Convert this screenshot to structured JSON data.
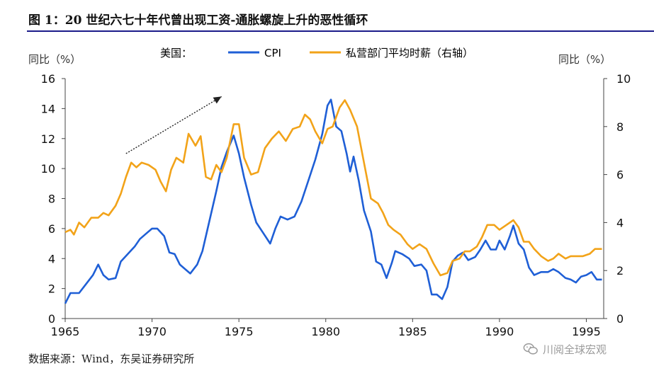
{
  "figure": {
    "title": "图 1：20 世纪六七十年代曾出现工资-通胀螺旋上升的恶性循环",
    "source": "数据来源：Wind，东吴证券研究所",
    "watermark": "川阅全球宏观"
  },
  "chart_data": {
    "type": "line",
    "legend_prefix": "美国：",
    "left_axis_label": "同比（%）",
    "right_axis_label": "同比（%）",
    "x_range": [
      1965,
      1996
    ],
    "x_ticks": [
      1965,
      1970,
      1975,
      1980,
      1985,
      1990,
      1995
    ],
    "y_left": {
      "range": [
        0,
        16
      ],
      "ticks": [
        0,
        2,
        4,
        6,
        8,
        10,
        12,
        14,
        16
      ]
    },
    "y_right": {
      "range": [
        0,
        10
      ],
      "ticks": [
        0,
        2,
        4,
        6,
        8,
        10
      ]
    },
    "grid": false,
    "legend_position": "top",
    "series": [
      {
        "name": "CPI",
        "axis": "left",
        "color": "#1f5fd6",
        "points": [
          [
            1965.0,
            1.0
          ],
          [
            1965.3,
            1.7
          ],
          [
            1965.8,
            1.7
          ],
          [
            1966.2,
            2.3
          ],
          [
            1966.6,
            2.9
          ],
          [
            1966.9,
            3.6
          ],
          [
            1967.2,
            2.9
          ],
          [
            1967.5,
            2.6
          ],
          [
            1967.9,
            2.7
          ],
          [
            1968.2,
            3.8
          ],
          [
            1968.6,
            4.3
          ],
          [
            1969.0,
            4.8
          ],
          [
            1969.3,
            5.3
          ],
          [
            1969.7,
            5.7
          ],
          [
            1970.0,
            6.0
          ],
          [
            1970.3,
            6.0
          ],
          [
            1970.7,
            5.5
          ],
          [
            1971.0,
            4.4
          ],
          [
            1971.3,
            4.3
          ],
          [
            1971.6,
            3.6
          ],
          [
            1971.9,
            3.3
          ],
          [
            1972.2,
            3.0
          ],
          [
            1972.6,
            3.6
          ],
          [
            1972.9,
            4.5
          ],
          [
            1973.3,
            6.5
          ],
          [
            1973.7,
            8.5
          ],
          [
            1974.0,
            10.1
          ],
          [
            1974.3,
            11.1
          ],
          [
            1974.7,
            12.2
          ],
          [
            1975.0,
            11.0
          ],
          [
            1975.3,
            9.4
          ],
          [
            1975.7,
            7.6
          ],
          [
            1976.0,
            6.4
          ],
          [
            1976.4,
            5.7
          ],
          [
            1976.8,
            5.0
          ],
          [
            1977.1,
            6.0
          ],
          [
            1977.4,
            6.8
          ],
          [
            1977.8,
            6.6
          ],
          [
            1978.2,
            6.8
          ],
          [
            1978.6,
            7.8
          ],
          [
            1979.0,
            9.2
          ],
          [
            1979.4,
            10.6
          ],
          [
            1979.8,
            12.3
          ],
          [
            1980.1,
            14.2
          ],
          [
            1980.3,
            14.6
          ],
          [
            1980.6,
            12.8
          ],
          [
            1980.9,
            12.5
          ],
          [
            1981.2,
            11.0
          ],
          [
            1981.4,
            9.8
          ],
          [
            1981.6,
            10.8
          ],
          [
            1981.9,
            9.2
          ],
          [
            1982.2,
            7.2
          ],
          [
            1982.6,
            5.8
          ],
          [
            1982.9,
            3.8
          ],
          [
            1983.2,
            3.6
          ],
          [
            1983.5,
            2.7
          ],
          [
            1983.8,
            3.7
          ],
          [
            1984.0,
            4.5
          ],
          [
            1984.4,
            4.3
          ],
          [
            1984.8,
            4.0
          ],
          [
            1985.1,
            3.5
          ],
          [
            1985.5,
            3.6
          ],
          [
            1985.8,
            3.2
          ],
          [
            1986.1,
            1.6
          ],
          [
            1986.4,
            1.6
          ],
          [
            1986.7,
            1.3
          ],
          [
            1987.0,
            2.1
          ],
          [
            1987.3,
            3.8
          ],
          [
            1987.6,
            4.2
          ],
          [
            1987.9,
            4.4
          ],
          [
            1988.2,
            3.9
          ],
          [
            1988.6,
            4.1
          ],
          [
            1988.9,
            4.6
          ],
          [
            1989.2,
            5.2
          ],
          [
            1989.5,
            4.6
          ],
          [
            1989.8,
            4.6
          ],
          [
            1990.0,
            5.2
          ],
          [
            1990.3,
            4.6
          ],
          [
            1990.6,
            5.5
          ],
          [
            1990.8,
            6.2
          ],
          [
            1991.1,
            5.0
          ],
          [
            1991.4,
            4.6
          ],
          [
            1991.7,
            3.4
          ],
          [
            1992.0,
            2.9
          ],
          [
            1992.4,
            3.1
          ],
          [
            1992.8,
            3.1
          ],
          [
            1993.1,
            3.3
          ],
          [
            1993.4,
            3.1
          ],
          [
            1993.8,
            2.7
          ],
          [
            1994.1,
            2.6
          ],
          [
            1994.4,
            2.4
          ],
          [
            1994.7,
            2.8
          ],
          [
            1995.0,
            2.9
          ],
          [
            1995.3,
            3.1
          ],
          [
            1995.6,
            2.6
          ],
          [
            1995.9,
            2.6
          ]
        ]
      },
      {
        "name": "私营部门平均时薪（右轴）",
        "axis": "right",
        "color": "#f2a319",
        "points": [
          [
            1965.0,
            3.6
          ],
          [
            1965.3,
            3.7
          ],
          [
            1965.5,
            3.5
          ],
          [
            1965.8,
            4.0
          ],
          [
            1966.1,
            3.8
          ],
          [
            1966.5,
            4.2
          ],
          [
            1966.9,
            4.2
          ],
          [
            1967.2,
            4.4
          ],
          [
            1967.5,
            4.3
          ],
          [
            1967.9,
            4.7
          ],
          [
            1968.2,
            5.2
          ],
          [
            1968.5,
            5.9
          ],
          [
            1968.8,
            6.5
          ],
          [
            1969.1,
            6.3
          ],
          [
            1969.4,
            6.5
          ],
          [
            1969.8,
            6.4
          ],
          [
            1970.2,
            6.2
          ],
          [
            1970.5,
            5.7
          ],
          [
            1970.8,
            5.3
          ],
          [
            1971.1,
            6.2
          ],
          [
            1971.4,
            6.7
          ],
          [
            1971.8,
            6.5
          ],
          [
            1972.1,
            7.7
          ],
          [
            1972.5,
            7.2
          ],
          [
            1972.8,
            7.6
          ],
          [
            1973.1,
            5.9
          ],
          [
            1973.4,
            5.8
          ],
          [
            1973.7,
            6.4
          ],
          [
            1974.0,
            6.1
          ],
          [
            1974.3,
            6.7
          ],
          [
            1974.7,
            8.1
          ],
          [
            1975.0,
            8.1
          ],
          [
            1975.3,
            6.7
          ],
          [
            1975.7,
            6.0
          ],
          [
            1976.1,
            6.1
          ],
          [
            1976.5,
            7.1
          ],
          [
            1976.9,
            7.5
          ],
          [
            1977.3,
            7.8
          ],
          [
            1977.7,
            7.4
          ],
          [
            1978.1,
            7.9
          ],
          [
            1978.5,
            8.0
          ],
          [
            1978.8,
            8.5
          ],
          [
            1979.1,
            8.3
          ],
          [
            1979.4,
            7.8
          ],
          [
            1979.8,
            7.3
          ],
          [
            1980.1,
            7.9
          ],
          [
            1980.4,
            8.0
          ],
          [
            1980.8,
            8.8
          ],
          [
            1981.1,
            9.1
          ],
          [
            1981.4,
            8.7
          ],
          [
            1981.8,
            8.0
          ],
          [
            1982.2,
            6.5
          ],
          [
            1982.6,
            5.0
          ],
          [
            1983.0,
            4.8
          ],
          [
            1983.3,
            4.4
          ],
          [
            1983.6,
            3.9
          ],
          [
            1983.9,
            3.7
          ],
          [
            1984.3,
            3.5
          ],
          [
            1984.7,
            3.1
          ],
          [
            1985.0,
            2.9
          ],
          [
            1985.4,
            3.1
          ],
          [
            1985.8,
            2.9
          ],
          [
            1986.2,
            2.3
          ],
          [
            1986.6,
            1.8
          ],
          [
            1987.0,
            1.9
          ],
          [
            1987.3,
            2.4
          ],
          [
            1987.7,
            2.5
          ],
          [
            1988.0,
            2.8
          ],
          [
            1988.3,
            2.8
          ],
          [
            1988.7,
            3.0
          ],
          [
            1989.0,
            3.4
          ],
          [
            1989.3,
            3.9
          ],
          [
            1989.7,
            3.9
          ],
          [
            1990.0,
            3.7
          ],
          [
            1990.4,
            3.9
          ],
          [
            1990.8,
            4.1
          ],
          [
            1991.1,
            3.8
          ],
          [
            1991.4,
            3.2
          ],
          [
            1991.7,
            3.2
          ],
          [
            1992.0,
            2.9
          ],
          [
            1992.4,
            2.6
          ],
          [
            1992.8,
            2.4
          ],
          [
            1993.1,
            2.5
          ],
          [
            1993.4,
            2.7
          ],
          [
            1993.8,
            2.5
          ],
          [
            1994.1,
            2.6
          ],
          [
            1994.5,
            2.6
          ],
          [
            1994.8,
            2.6
          ],
          [
            1995.2,
            2.7
          ],
          [
            1995.5,
            2.9
          ],
          [
            1995.9,
            2.9
          ]
        ]
      }
    ],
    "annotation_arrow": {
      "from": [
        1968.5,
        11.0
      ],
      "to": [
        1974.0,
        14.8
      ]
    }
  }
}
